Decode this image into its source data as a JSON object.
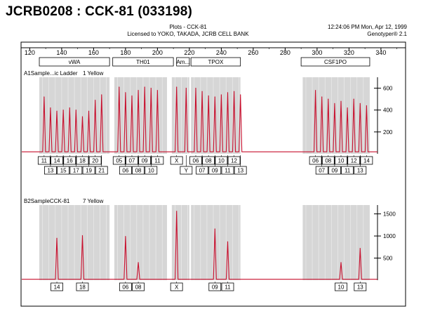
{
  "page_title": "JCRB0208 : CCK-81 (033198)",
  "header": {
    "plot_name": "Plots - CCK-81",
    "license": "Licensed to YOKO, TAKADA, JCRB CELL BANK",
    "timestamp": "12:24:06 PM  Mon, Apr 12, 1999",
    "software": "Genotyper® 2.1"
  },
  "chart_data": {
    "type": "line",
    "xaxis": {
      "range": [
        115,
        355
      ],
      "ticks": [
        120,
        140,
        160,
        180,
        200,
        220,
        240,
        260,
        280,
        300,
        320,
        340
      ]
    },
    "loci": [
      {
        "name": "vWA",
        "range": [
          126,
          170
        ]
      },
      {
        "name": "TH01",
        "range": [
          172,
          210
        ]
      },
      {
        "name": "Am...",
        "range": [
          212,
          220
        ]
      },
      {
        "name": "TPOX",
        "range": [
          221,
          252
        ]
      },
      {
        "name": "CSF1PO",
        "range": [
          290,
          333
        ]
      }
    ],
    "bins": [
      {
        "range": [
          126,
          170
        ]
      },
      {
        "range": [
          173,
          206
        ]
      },
      {
        "range": [
          209,
          220
        ]
      },
      {
        "range": [
          221,
          252
        ]
      },
      {
        "range": [
          291,
          333
        ]
      }
    ],
    "panels": [
      {
        "label": "A1Sample...ic Ladder",
        "dye": "1 Yellow",
        "ylim": [
          0,
          700
        ],
        "yticks": [
          200,
          400,
          600
        ],
        "baseline": 18,
        "peaks": [
          {
            "x": 129,
            "y": 520,
            "allele": "11"
          },
          {
            "x": 133,
            "y": 420,
            "allele": "13"
          },
          {
            "x": 137,
            "y": 390,
            "allele": "14"
          },
          {
            "x": 141,
            "y": 400,
            "allele": "15"
          },
          {
            "x": 145,
            "y": 420,
            "allele": "16"
          },
          {
            "x": 149,
            "y": 400,
            "allele": "17"
          },
          {
            "x": 153,
            "y": 340,
            "allele": "18"
          },
          {
            "x": 157,
            "y": 390,
            "allele": "19"
          },
          {
            "x": 161,
            "y": 490,
            "allele": "20"
          },
          {
            "x": 165,
            "y": 540,
            "allele": "21"
          },
          {
            "x": 176,
            "y": 610,
            "allele": "05"
          },
          {
            "x": 180,
            "y": 560,
            "allele": "06"
          },
          {
            "x": 184,
            "y": 530,
            "allele": "07"
          },
          {
            "x": 188,
            "y": 580,
            "allele": "08"
          },
          {
            "x": 192,
            "y": 610,
            "allele": "09"
          },
          {
            "x": 196,
            "y": 600,
            "allele": "10"
          },
          {
            "x": 200,
            "y": 580,
            "allele": "11"
          },
          {
            "x": 212,
            "y": 610,
            "allele": "X"
          },
          {
            "x": 218,
            "y": 600,
            "allele": "Y"
          },
          {
            "x": 224,
            "y": 600,
            "allele": "06"
          },
          {
            "x": 228,
            "y": 570,
            "allele": "07"
          },
          {
            "x": 232,
            "y": 530,
            "allele": "08"
          },
          {
            "x": 236,
            "y": 520,
            "allele": "09"
          },
          {
            "x": 240,
            "y": 540,
            "allele": "10"
          },
          {
            "x": 244,
            "y": 560,
            "allele": "11"
          },
          {
            "x": 248,
            "y": 570,
            "allele": "12"
          },
          {
            "x": 252,
            "y": 540,
            "allele": "13"
          },
          {
            "x": 299,
            "y": 580,
            "allele": "06"
          },
          {
            "x": 303,
            "y": 520,
            "allele": "07"
          },
          {
            "x": 307,
            "y": 500,
            "allele": "08"
          },
          {
            "x": 311,
            "y": 460,
            "allele": "09"
          },
          {
            "x": 315,
            "y": 480,
            "allele": "10"
          },
          {
            "x": 319,
            "y": 420,
            "allele": "11"
          },
          {
            "x": 323,
            "y": 500,
            "allele": "12"
          },
          {
            "x": 327,
            "y": 460,
            "allele": "13"
          },
          {
            "x": 331,
            "y": 440,
            "allele": "14"
          }
        ]
      },
      {
        "label": "B2SampleCCK-81",
        "dye": "7 Yellow",
        "ylim": [
          0,
          1700
        ],
        "yticks": [
          500,
          1000,
          1500
        ],
        "baseline": 20,
        "peaks": [
          {
            "x": 137,
            "y": 950,
            "allele": "14"
          },
          {
            "x": 153,
            "y": 1010,
            "allele": "18"
          },
          {
            "x": 180,
            "y": 990,
            "allele": "06"
          },
          {
            "x": 188,
            "y": 400,
            "allele": "08"
          },
          {
            "x": 212,
            "y": 1560,
            "allele": "X"
          },
          {
            "x": 236,
            "y": 1160,
            "allele": "09"
          },
          {
            "x": 244,
            "y": 870,
            "allele": "11"
          },
          {
            "x": 315,
            "y": 400,
            "allele": "10"
          },
          {
            "x": 327,
            "y": 720,
            "allele": "13"
          }
        ]
      }
    ]
  }
}
